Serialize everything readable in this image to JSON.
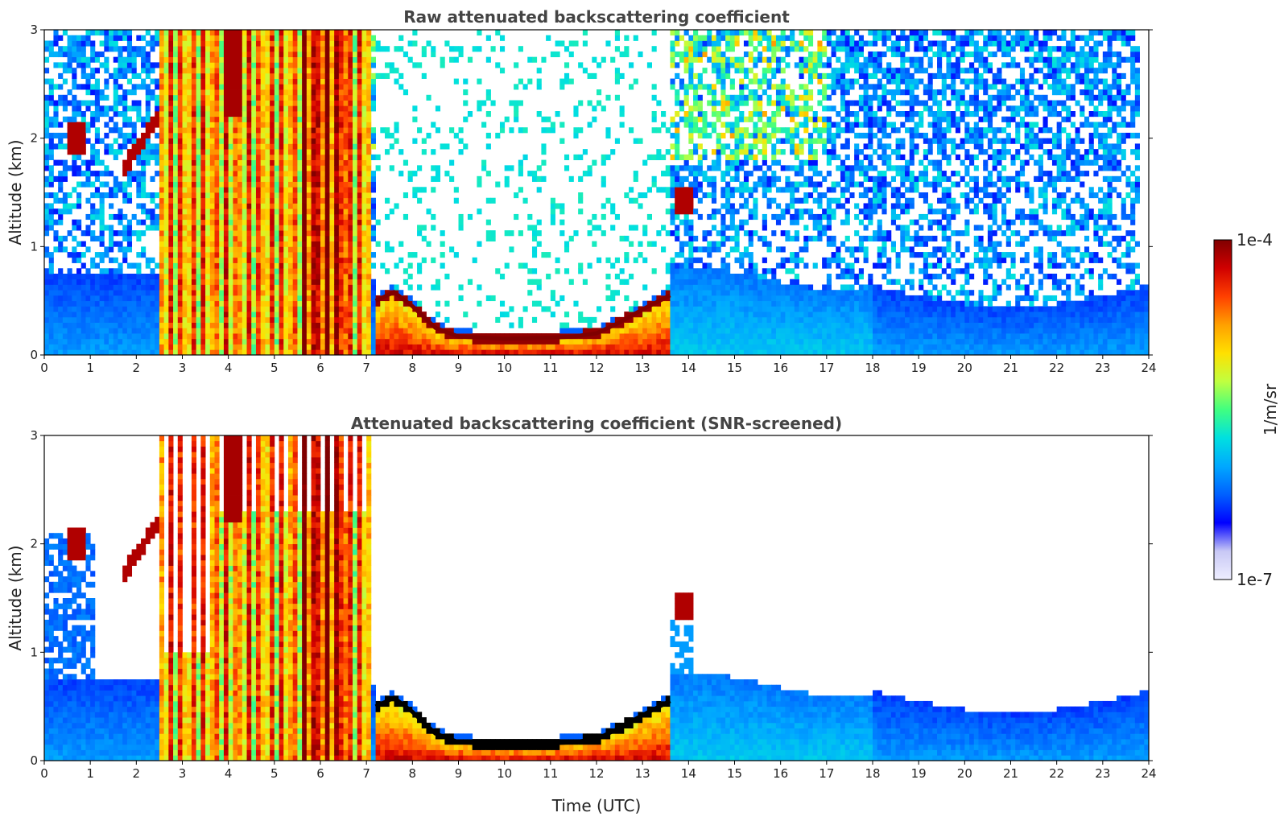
{
  "colors": {
    "colormap": [
      "#eeeeff",
      "#c8c8f5",
      "#0000ff",
      "#0060ff",
      "#00a8ff",
      "#00e0e0",
      "#40ff80",
      "#c0ff40",
      "#ffe000",
      "#ffa000",
      "#ff4000",
      "#d00000",
      "#800000"
    ],
    "screened_profile_line": "#000000",
    "text": "#444444"
  },
  "colorbar": {
    "label": "1/m/sr",
    "min_label": "1e-7",
    "max_label": "1e-4",
    "scale": "log",
    "range": [
      1e-07,
      0.0001
    ]
  },
  "chart_data": [
    {
      "type": "heatmap",
      "title": "Raw attenuated backscattering coefficient",
      "xlabel": "",
      "ylabel": "Altitude (km)",
      "xlim": [
        0,
        24
      ],
      "ylim": [
        0,
        3
      ],
      "xticks": [
        "0",
        "1",
        "2",
        "3",
        "4",
        "5",
        "6",
        "7",
        "8",
        "9",
        "10",
        "11",
        "12",
        "13",
        "14",
        "15",
        "16",
        "17",
        "18",
        "19",
        "20",
        "21",
        "22",
        "23",
        "24"
      ],
      "yticks": [
        "0",
        "1",
        "2",
        "3"
      ],
      "screened": false,
      "boundary_layer_top_km": [
        [
          7.2,
          0.5
        ],
        [
          7.6,
          0.58
        ],
        [
          8.0,
          0.45
        ],
        [
          8.5,
          0.25
        ],
        [
          9.0,
          0.17
        ],
        [
          10.0,
          0.15
        ],
        [
          11.0,
          0.16
        ],
        [
          11.5,
          0.17
        ],
        [
          12.0,
          0.2
        ],
        [
          12.5,
          0.3
        ],
        [
          13.0,
          0.42
        ],
        [
          13.6,
          0.55
        ]
      ]
    },
    {
      "type": "heatmap",
      "title": "Attenuated backscattering coefficient (SNR-screened)",
      "xlabel": "Time (UTC)",
      "ylabel": "Altitude (km)",
      "xlim": [
        0,
        24
      ],
      "ylim": [
        0,
        3
      ],
      "xticks": [
        "0",
        "1",
        "2",
        "3",
        "4",
        "5",
        "6",
        "7",
        "8",
        "9",
        "10",
        "11",
        "12",
        "13",
        "14",
        "15",
        "16",
        "17",
        "18",
        "19",
        "20",
        "21",
        "22",
        "23",
        "24"
      ],
      "yticks": [
        "0",
        "1",
        "2",
        "3"
      ],
      "screened": true,
      "boundary_layer_top_km": [
        [
          7.2,
          0.5
        ],
        [
          7.6,
          0.58
        ],
        [
          8.0,
          0.45
        ],
        [
          8.5,
          0.25
        ],
        [
          9.0,
          0.17
        ],
        [
          10.0,
          0.15
        ],
        [
          11.0,
          0.16
        ],
        [
          11.5,
          0.17
        ],
        [
          12.0,
          0.2
        ],
        [
          12.5,
          0.3
        ],
        [
          13.0,
          0.42
        ],
        [
          13.6,
          0.55
        ]
      ]
    }
  ]
}
